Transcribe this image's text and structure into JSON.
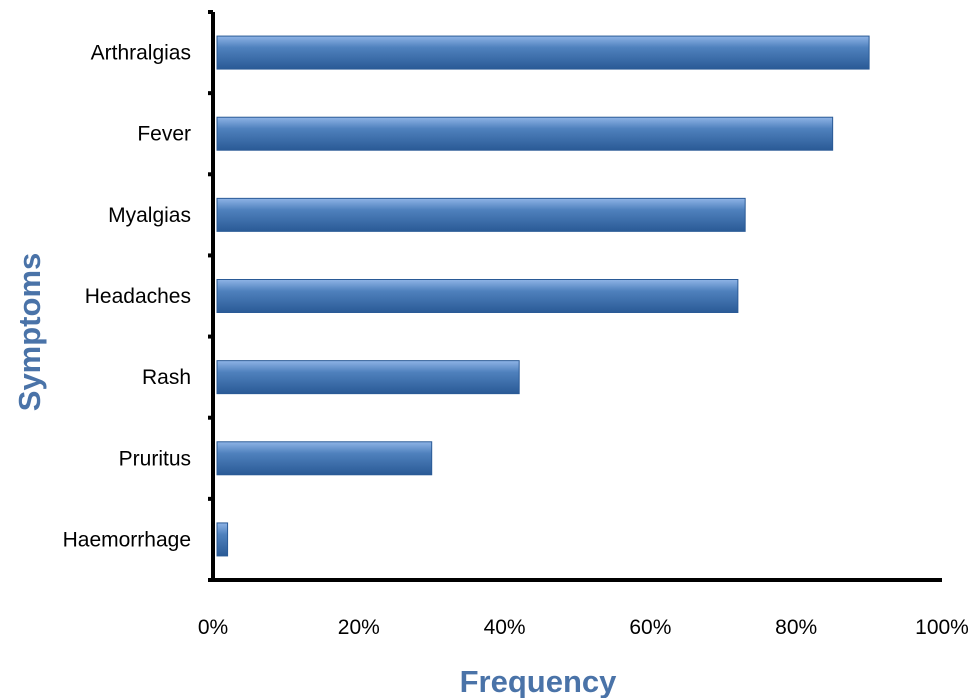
{
  "chart_data": {
    "type": "bar",
    "orientation": "horizontal",
    "categories": [
      "Arthralgias",
      "Fever",
      "Myalgias",
      "Headaches",
      "Rash",
      "Pruritus",
      "Haemorrhage"
    ],
    "values": [
      90,
      85,
      73,
      72,
      42,
      30,
      2
    ],
    "xlabel": "Frequency",
    "ylabel": "Symptoms",
    "xlim": [
      0,
      100
    ],
    "x_ticks": [
      "0%",
      "20%",
      "40%",
      "60%",
      "80%",
      "100%"
    ],
    "grid": false,
    "legend": "none",
    "colors": {
      "bar_light": "#8fb4e6",
      "bar_mid": "#4f81bd",
      "bar_dark": "#2a5a96",
      "axis_title": "#4a73a8",
      "axis_line": "#000000"
    }
  }
}
